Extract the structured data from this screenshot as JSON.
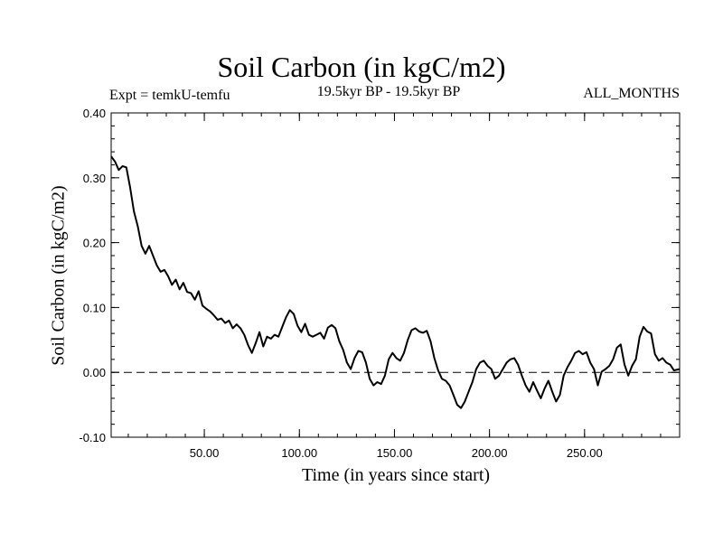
{
  "chart_data": {
    "type": "line",
    "title": "Soil Carbon (in kgC/m2)",
    "left_subtitle": "Expt = temkU-temfu",
    "center_subtitle": "19.5kyr BP - 19.5kyr BP",
    "right_subtitle": "ALL_MONTHS",
    "xlabel": "Time (in years since start)",
    "ylabel": "Soil Carbon (in kgC/m2)",
    "xlim": [
      1,
      300
    ],
    "ylim": [
      -0.1,
      0.4
    ],
    "xticks": [
      50,
      100,
      150,
      200,
      250
    ],
    "xtick_labels": [
      "50.00",
      "100.00",
      "150.00",
      "200.00",
      "250.00"
    ],
    "yticks": [
      -0.1,
      0.0,
      0.1,
      0.2,
      0.3,
      0.4
    ],
    "ytick_labels": [
      "-0.10",
      "0.00",
      "0.10",
      "0.20",
      "0.30",
      "0.40"
    ],
    "reference_line": {
      "y": 0.0,
      "style": "dashed"
    },
    "series": [
      {
        "name": "Soil Carbon",
        "color": "#000000",
        "x": [
          1,
          3,
          5,
          7,
          9,
          11,
          13,
          15,
          17,
          19,
          21,
          23,
          25,
          27,
          29,
          31,
          33,
          35,
          37,
          39,
          41,
          43,
          45,
          47,
          49,
          51,
          53,
          55,
          57,
          59,
          61,
          63,
          65,
          67,
          69,
          71,
          73,
          75,
          77,
          79,
          81,
          83,
          85,
          87,
          89,
          91,
          93,
          95,
          97,
          99,
          101,
          103,
          105,
          107,
          109,
          111,
          113,
          115,
          117,
          119,
          121,
          123,
          125,
          127,
          129,
          131,
          133,
          135,
          137,
          139,
          141,
          143,
          145,
          147,
          149,
          151,
          153,
          155,
          157,
          159,
          161,
          163,
          165,
          167,
          169,
          171,
          173,
          175,
          177,
          179,
          181,
          183,
          185,
          187,
          189,
          191,
          193,
          195,
          197,
          199,
          201,
          203,
          205,
          207,
          209,
          211,
          213,
          215,
          217,
          219,
          221,
          223,
          225,
          227,
          229,
          231,
          233,
          235,
          237,
          239,
          241,
          243,
          245,
          247,
          249,
          251,
          253,
          255,
          257,
          259,
          261,
          263,
          265,
          267,
          269,
          271,
          273,
          275,
          277,
          279,
          281,
          283,
          285,
          287,
          289,
          291,
          293,
          295,
          297,
          300
        ],
        "values": [
          0.333,
          0.325,
          0.312,
          0.318,
          0.316,
          0.285,
          0.248,
          0.225,
          0.195,
          0.183,
          0.195,
          0.18,
          0.165,
          0.155,
          0.158,
          0.148,
          0.135,
          0.143,
          0.128,
          0.138,
          0.124,
          0.122,
          0.112,
          0.125,
          0.103,
          0.098,
          0.094,
          0.088,
          0.081,
          0.083,
          0.076,
          0.08,
          0.068,
          0.074,
          0.068,
          0.058,
          0.042,
          0.03,
          0.045,
          0.062,
          0.04,
          0.055,
          0.052,
          0.058,
          0.055,
          0.07,
          0.085,
          0.096,
          0.09,
          0.072,
          0.062,
          0.075,
          0.058,
          0.055,
          0.058,
          0.061,
          0.052,
          0.069,
          0.073,
          0.068,
          0.048,
          0.035,
          0.015,
          0.005,
          0.022,
          0.033,
          0.031,
          0.015,
          -0.01,
          -0.02,
          -0.015,
          -0.018,
          -0.005,
          0.02,
          0.03,
          0.022,
          0.018,
          0.03,
          0.05,
          0.065,
          0.068,
          0.063,
          0.061,
          0.064,
          0.048,
          0.022,
          0.003,
          -0.01,
          -0.013,
          -0.02,
          -0.035,
          -0.05,
          -0.055,
          -0.045,
          -0.03,
          -0.015,
          0.005,
          0.015,
          0.018,
          0.01,
          0.005,
          -0.01,
          -0.005,
          0.005,
          0.015,
          0.02,
          0.022,
          0.012,
          -0.005,
          -0.02,
          -0.03,
          -0.015,
          -0.028,
          -0.04,
          -0.025,
          -0.013,
          -0.03,
          -0.045,
          -0.035,
          -0.005,
          0.008,
          0.018,
          0.03,
          0.033,
          0.028,
          0.031,
          0.015,
          0.005,
          -0.02,
          0.001,
          0.005,
          0.01,
          0.02,
          0.038,
          0.043,
          0.012,
          -0.005,
          0.01,
          0.02,
          0.055,
          0.07,
          0.063,
          0.06,
          0.028,
          0.018,
          0.022,
          0.015,
          0.012,
          0.003,
          0.005
        ]
      }
    ]
  }
}
